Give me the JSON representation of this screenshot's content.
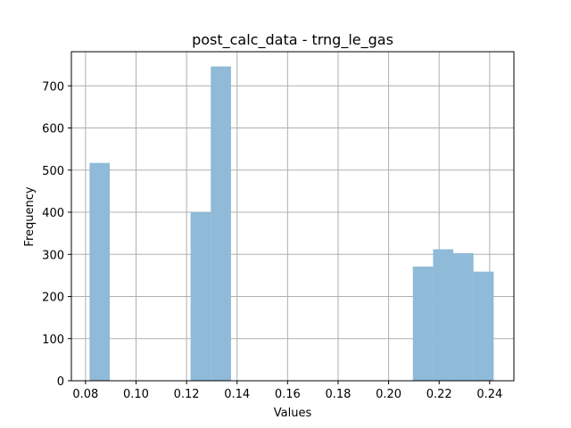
{
  "chart_data": {
    "type": "bar",
    "title": "post_calc_data - trng_le_gas",
    "xlabel": "Values",
    "ylabel": "Frequency",
    "xlim": [
      0.0744,
      0.2496
    ],
    "ylim": [
      0,
      781
    ],
    "x_ticks": [
      0.08,
      0.1,
      0.12,
      0.14,
      0.16,
      0.18,
      0.2,
      0.22,
      0.24
    ],
    "x_tick_labels": [
      "0.08",
      "0.10",
      "0.12",
      "0.14",
      "0.16",
      "0.18",
      "0.20",
      "0.22",
      "0.24"
    ],
    "y_ticks": [
      0,
      100,
      200,
      300,
      400,
      500,
      600,
      700
    ],
    "y_tick_labels": [
      "0",
      "100",
      "200",
      "300",
      "400",
      "500",
      "600",
      "700"
    ],
    "bins": [
      {
        "x0": 0.0816,
        "x1": 0.0896,
        "value": 517
      },
      {
        "x0": 0.0896,
        "x1": 0.0976,
        "value": 0
      },
      {
        "x0": 0.0976,
        "x1": 0.1056,
        "value": 0
      },
      {
        "x0": 0.1056,
        "x1": 0.1136,
        "value": 0
      },
      {
        "x0": 0.1136,
        "x1": 0.1216,
        "value": 0
      },
      {
        "x0": 0.1216,
        "x1": 0.1296,
        "value": 400
      },
      {
        "x0": 0.1296,
        "x1": 0.1376,
        "value": 746
      },
      {
        "x0": 0.1376,
        "x1": 0.1456,
        "value": 0
      },
      {
        "x0": 0.1456,
        "x1": 0.1536,
        "value": 0
      },
      {
        "x0": 0.1536,
        "x1": 0.1616,
        "value": 0
      },
      {
        "x0": 0.1616,
        "x1": 0.1696,
        "value": 0
      },
      {
        "x0": 0.1696,
        "x1": 0.1776,
        "value": 0
      },
      {
        "x0": 0.1776,
        "x1": 0.1856,
        "value": 0
      },
      {
        "x0": 0.1856,
        "x1": 0.1936,
        "value": 0
      },
      {
        "x0": 0.1936,
        "x1": 0.2016,
        "value": 0
      },
      {
        "x0": 0.2016,
        "x1": 0.2096,
        "value": 0
      },
      {
        "x0": 0.2096,
        "x1": 0.2176,
        "value": 271
      },
      {
        "x0": 0.2176,
        "x1": 0.2256,
        "value": 312
      },
      {
        "x0": 0.2256,
        "x1": 0.2336,
        "value": 303
      },
      {
        "x0": 0.2336,
        "x1": 0.2416,
        "value": 259
      }
    ],
    "grid": true,
    "legend": "none",
    "bar_color": "#8fbad8",
    "grid_color": "#b0b0b0"
  }
}
